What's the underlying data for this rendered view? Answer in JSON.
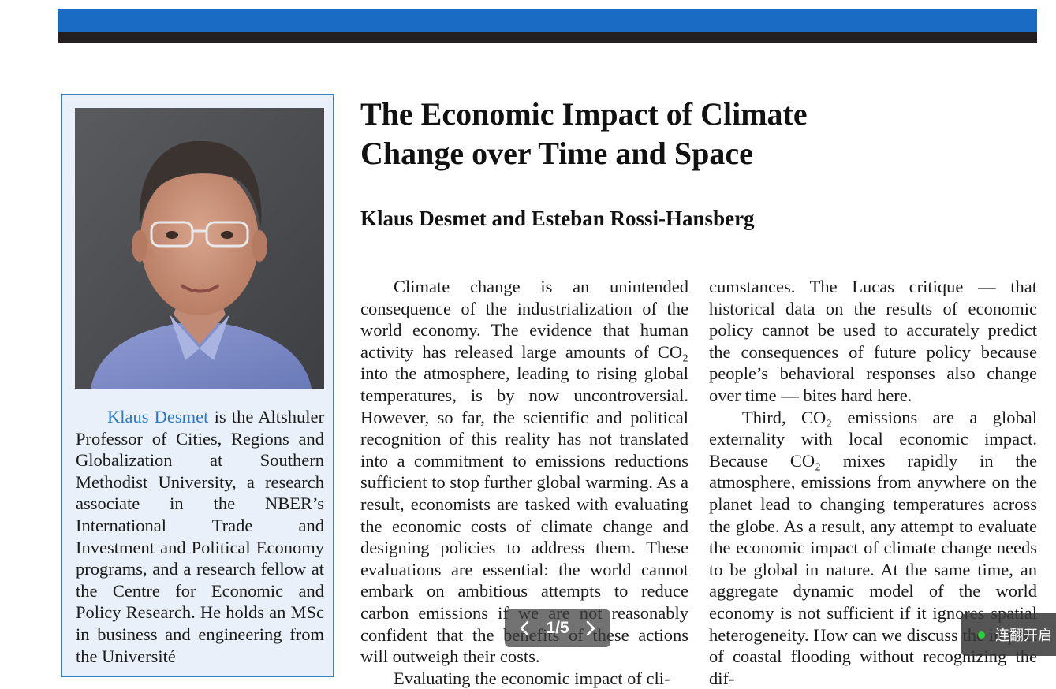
{
  "article": {
    "title_line1": "The Economic Impact of Climate",
    "title_line2": "Change over Time and Space",
    "authors": "Klaus Desmet and Esteban Rossi-Hansberg"
  },
  "sidebar": {
    "photo_alt": "Portrait of Klaus Desmet",
    "bio_name": "Klaus Desmet",
    "bio_text": " is the Altshuler Professor of Cities, Regions and Globalization at Southern Methodist University, a research associate in the NBER’s International Trade and Investment and Political Economy programs, and a research fellow at the Centre for Economic and Policy Research. He holds an MSc in business and engineering from the Université"
  },
  "body": {
    "left_p1": "Climate change is an unintended consequence of the industrialization of the world economy. The evidence that human activity has released large amounts of CO₂ into the atmosphere, leading to rising global temperatures, is by now uncontroversial. However, so far, the scientific and political recognition of this reality has not translated into a commitment to emissions reductions sufficient to stop further global warming. As a result, economists are tasked with evaluating the economic costs of climate change and designing policies to address them. These evaluations are essential: the world cannot embark on ambitious attempts to reduce carbon emissions if we are not reasonably confident that the benefits of these actions will outweigh their costs.",
    "left_p2": "Evaluating the economic impact of cli-",
    "right_p1": "cumstances. The Lucas critique — that historical data on the results of economic policy cannot be used to accurately predict the consequences of future policy because people’s behavioral responses also change over time — bites hard here.",
    "right_p2": "Third, CO₂ emissions are a global externality with local economic impact. Because CO₂ mixes rapidly in the atmosphere, emissions from anywhere on the planet lead to changing temperatures across the globe. As a result, any attempt to evaluate the economic impact of climate change needs to be global in nature. At the same time, an aggregate dynamic model of the world economy is not sufficient if it ignores spatial heterogeneity. How can we discuss the impact of coastal flooding without recognizing the dif-"
  },
  "pager": {
    "label": "1/5",
    "prev_icon": "chevron-left-icon",
    "next_icon": "chevron-right-icon"
  },
  "toast": {
    "label": "连翻开启",
    "status_color": "#2ecc40"
  },
  "colors": {
    "banner_blue": "#1a6bc4",
    "banner_dark": "#231f20",
    "sidebar_border": "#3a82c8",
    "sidebar_bg": "#e9f0f9",
    "link": "#2a78c2"
  }
}
